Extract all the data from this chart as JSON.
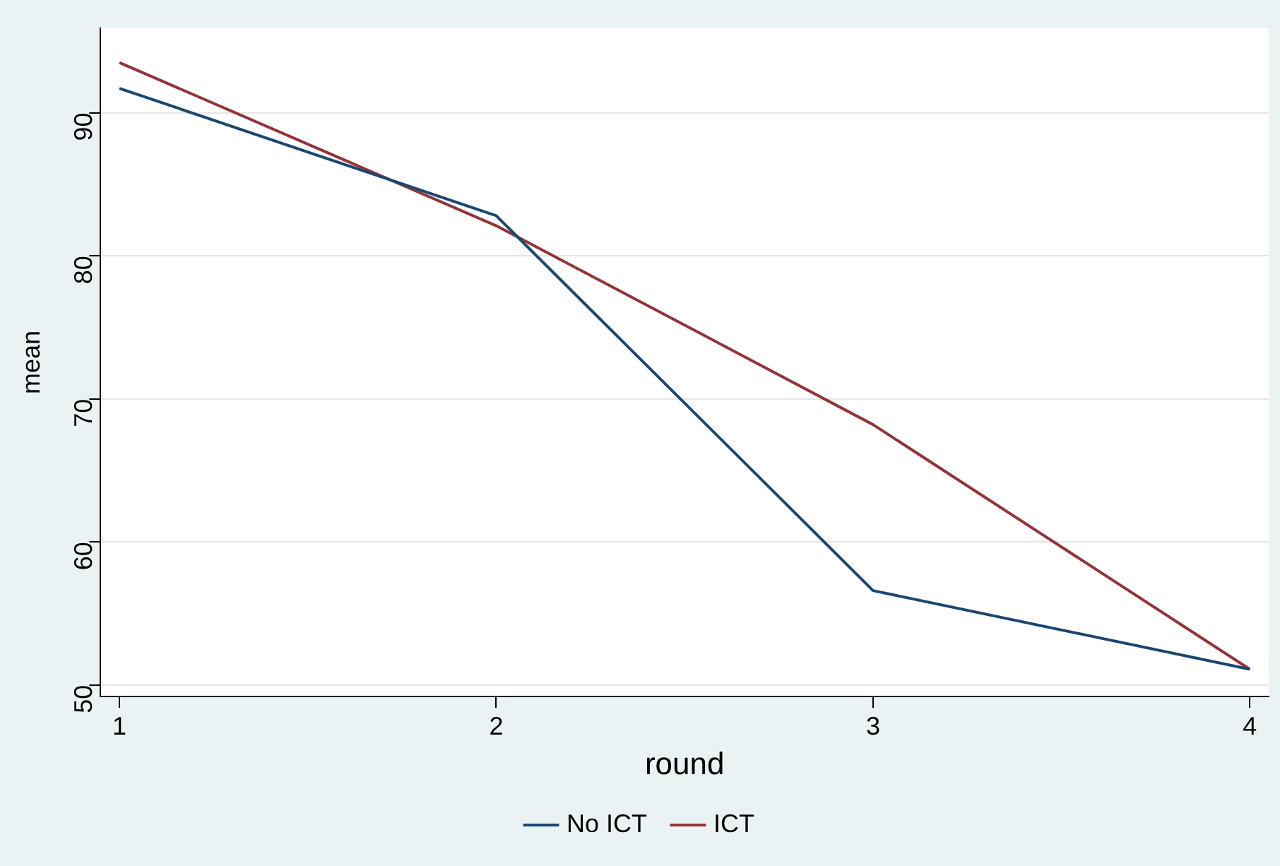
{
  "chart_data": {
    "type": "line",
    "xlabel": "round",
    "ylabel": "mean",
    "x": [
      1,
      2,
      3,
      4
    ],
    "series": [
      {
        "name": "No ICT",
        "color": "#1a476f",
        "values": [
          91.7,
          82.8,
          56.6,
          51.1
        ]
      },
      {
        "name": "ICT",
        "color": "#90353b",
        "values": [
          93.5,
          82.1,
          68.2,
          51.1
        ]
      }
    ],
    "xlim": [
      0.95,
      4.05
    ],
    "xticks": [
      1,
      2,
      3,
      4
    ],
    "ylim": [
      49.2,
      95.9
    ],
    "yticks": [
      50,
      60,
      70,
      80,
      90
    ],
    "grid": "y",
    "legend": "bottom",
    "marker": "none",
    "line_style": "solid"
  }
}
